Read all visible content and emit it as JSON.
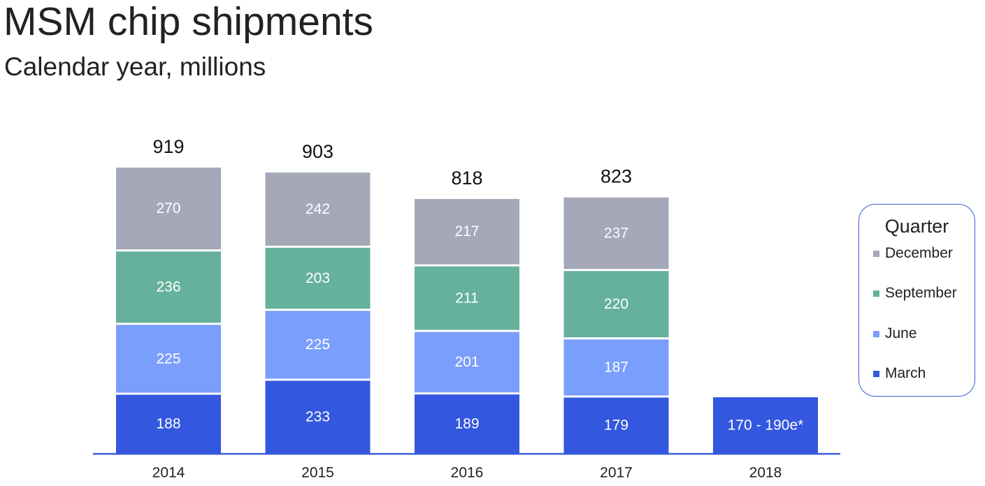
{
  "title": "MSM chip shipments",
  "subtitle": "Calendar year, millions",
  "colors": {
    "December": "#a4a8b9",
    "September": "#66b19b",
    "June": "#7a9efc",
    "March": "#3357de",
    "axis": "#3a5bd8"
  },
  "legend": {
    "title": "Quarter",
    "items": [
      {
        "label": "December",
        "color": "#a4a8b9"
      },
      {
        "label": "September",
        "color": "#66b19b"
      },
      {
        "label": "June",
        "color": "#7a9efc"
      },
      {
        "label": "March",
        "color": "#3357de"
      }
    ]
  },
  "chart_data": {
    "type": "bar",
    "stacked": true,
    "categories": [
      "2014",
      "2015",
      "2016",
      "2017",
      "2018"
    ],
    "series": [
      {
        "name": "March",
        "values": [
          188,
          233,
          189,
          179,
          null
        ]
      },
      {
        "name": "June",
        "values": [
          225,
          225,
          201,
          187,
          null
        ]
      },
      {
        "name": "September",
        "values": [
          236,
          203,
          211,
          220,
          null
        ]
      },
      {
        "name": "December",
        "values": [
          270,
          242,
          217,
          237,
          null
        ]
      }
    ],
    "totals": [
      "919",
      "903",
      "818",
      "823",
      ""
    ],
    "estimate": {
      "category": "2018",
      "series": "March",
      "label": "170 - 190e*",
      "low": 170,
      "high": 190
    },
    "xlabel": "",
    "ylabel": "",
    "ylim": [
      0,
      919
    ],
    "grid": false,
    "legend_position": "right"
  }
}
